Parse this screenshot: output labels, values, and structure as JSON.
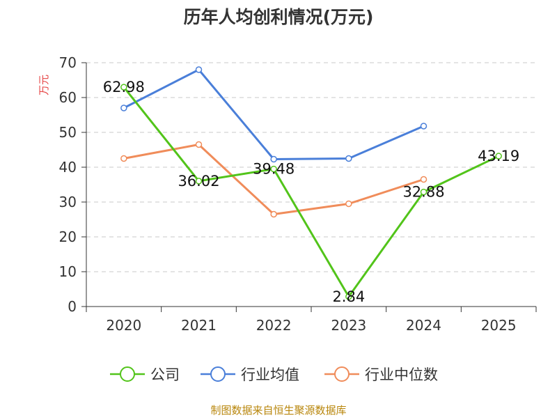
{
  "chart_data": {
    "type": "line",
    "title": "历年人均创利情况(万元)",
    "ylabel": "万元",
    "xlabel": "",
    "categories": [
      "2020",
      "2021",
      "2022",
      "2023",
      "2024",
      "2025"
    ],
    "ylim": [
      0,
      70
    ],
    "yticks": [
      0,
      10,
      20,
      30,
      40,
      50,
      60,
      70
    ],
    "grid": true,
    "legend_position": "bottom",
    "series": [
      {
        "name": "公司",
        "color": "#52c41a",
        "values": [
          62.98,
          36.02,
          39.48,
          2.84,
          32.88,
          43.19
        ],
        "labels": [
          "62.98",
          "36.02",
          "39.48",
          "2.84",
          "32.88",
          "43.19"
        ]
      },
      {
        "name": "行业均值",
        "color": "#4a7fd9",
        "values": [
          57,
          68,
          42.3,
          42.5,
          51.8,
          null
        ]
      },
      {
        "name": "行业中位数",
        "color": "#f08c5a",
        "values": [
          42.5,
          46.5,
          26.5,
          29.5,
          36.5,
          null
        ]
      }
    ],
    "source": "制图数据来自恒生聚源数据库"
  }
}
